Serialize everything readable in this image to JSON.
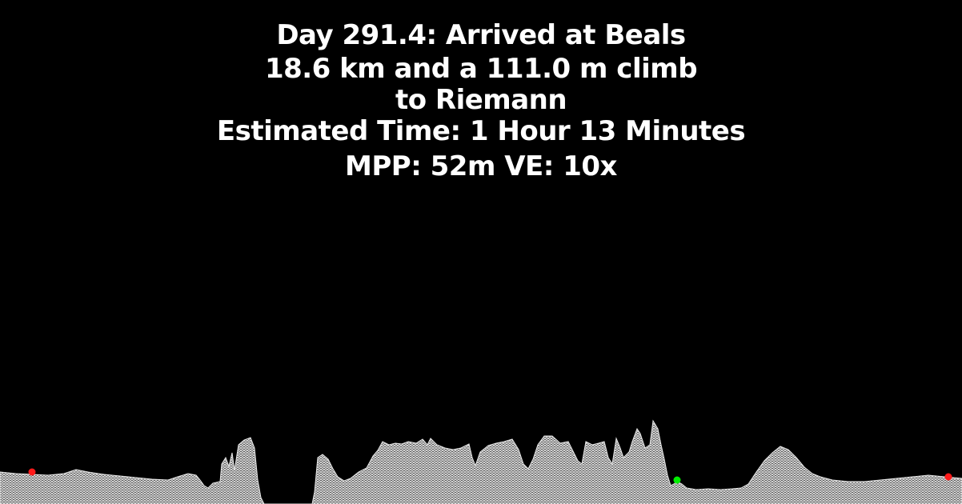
{
  "header": {
    "line1": "Day 291.4: Arrived at Beals",
    "line2": "18.6 km and a 111.0 m climb",
    "line3": "to Riemann",
    "line4": "Estimated Time: 1 Hour 13 Minutes",
    "line5": "MPP: 52m VE: 10x"
  },
  "colors": {
    "background": "#000000",
    "text": "#ffffff",
    "terrain": "#d8d8d8",
    "marker_start": "#ff1a1a",
    "marker_current": "#00ee00",
    "marker_end": "#ff1a1a"
  }
}
